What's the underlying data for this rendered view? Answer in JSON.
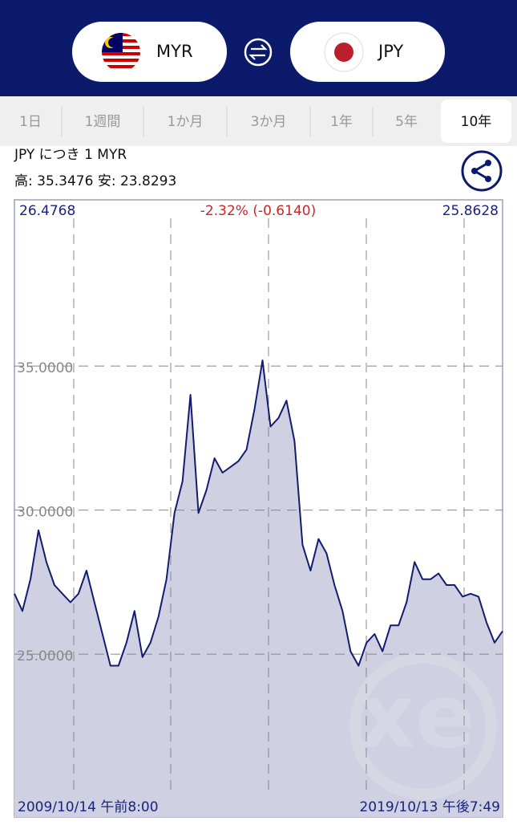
{
  "header": {
    "from_currency": "MYR",
    "to_currency": "JPY"
  },
  "tabs": {
    "items": [
      "1日",
      "1週間",
      "1か月",
      "3か月",
      "1年",
      "5年",
      "10年"
    ],
    "active": 6
  },
  "info": {
    "unit": "JPY につき 1 MYR",
    "high_low": "高: 35.3476 安: 23.8293"
  },
  "chart_data": {
    "type": "area",
    "start_label": "26.4768",
    "change_label": "-2.32% (-0.6140)",
    "end_label": "25.8628",
    "x_start_label": "2009/10/14 午前8:00",
    "x_end_label": "2019/10/13 午後7:49",
    "watermark": "xe",
    "color": "#141c6e",
    "fill": "#cfd0e2",
    "ylim": [
      19.35,
      40.77
    ],
    "yticks": [
      {
        "value": 25,
        "label": "25.0000"
      },
      {
        "value": 30,
        "label": "30.0000"
      },
      {
        "value": 35,
        "label": "35.0000"
      }
    ],
    "grid": true,
    "values": [
      27.1,
      26.5,
      27.6,
      29.3,
      28.2,
      27.4,
      27.1,
      26.8,
      27.1,
      27.9,
      26.8,
      25.7,
      24.6,
      24.6,
      25.4,
      26.5,
      24.9,
      25.4,
      26.3,
      27.6,
      29.9,
      31.0,
      34.0,
      29.9,
      30.7,
      31.8,
      31.3,
      31.5,
      31.7,
      32.1,
      33.5,
      35.2,
      32.9,
      33.2,
      33.8,
      32.4,
      28.8,
      27.9,
      29.0,
      28.5,
      27.4,
      26.5,
      25.1,
      24.6,
      25.4,
      25.7,
      25.1,
      26.0,
      26.0,
      26.8,
      28.2,
      27.6,
      27.6,
      27.8,
      27.4,
      27.4,
      27.0,
      27.1,
      27.0,
      26.1,
      25.4,
      25.8
    ]
  }
}
